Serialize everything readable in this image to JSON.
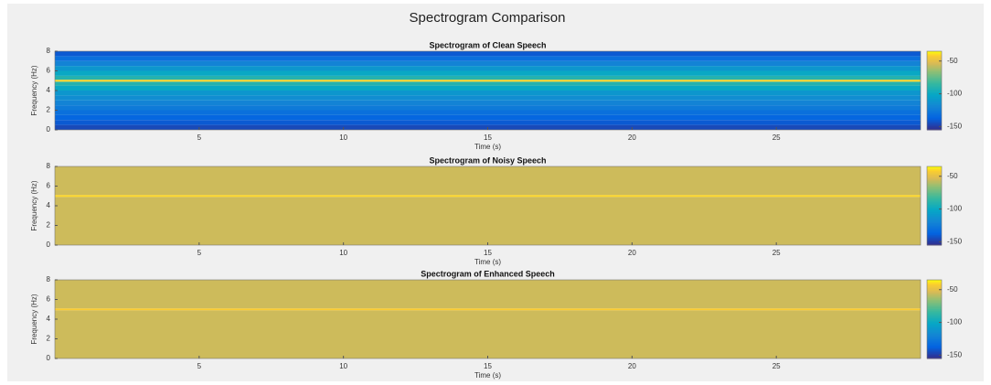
{
  "title": "Spectrogram Comparison",
  "chart_data": [
    {
      "type": "spectrogram",
      "title": "Spectrogram of Clean Speech",
      "xlabel": "Time (s)",
      "ylabel": "Frequency (Hz)",
      "xlim": [
        0,
        30
      ],
      "xticks": [
        5,
        10,
        15,
        20,
        25
      ],
      "ylim": [
        0,
        8
      ],
      "yticks": [
        0,
        2,
        4,
        6,
        8
      ],
      "freq_bins": [
        0,
        0.5,
        1,
        1.5,
        2,
        2.5,
        3,
        3.5,
        4,
        4.5,
        4.9,
        5.1,
        5.5,
        6,
        6.5,
        7,
        7.5,
        8
      ],
      "values": [
        -145,
        -140,
        -135,
        -130,
        -125,
        -120,
        -115,
        -110,
        -100,
        -90,
        -40,
        -90,
        -100,
        -110,
        -120,
        -130,
        -140
      ],
      "clim": [
        -155,
        -35
      ],
      "cticks": [
        -50,
        -100,
        -150
      ]
    },
    {
      "type": "spectrogram",
      "title": "Spectrogram of Noisy Speech",
      "xlabel": "Time (s)",
      "ylabel": "Frequency (Hz)",
      "xlim": [
        0,
        30
      ],
      "xticks": [
        5,
        10,
        15,
        20,
        25
      ],
      "ylim": [
        0,
        8
      ],
      "yticks": [
        0,
        2,
        4,
        6,
        8
      ],
      "freq_bins": [
        0,
        4.9,
        5.1,
        8
      ],
      "values": [
        -55,
        -40,
        -55
      ],
      "clim": [
        -155,
        -35
      ],
      "cticks": [
        -50,
        -100,
        -150
      ]
    },
    {
      "type": "spectrogram",
      "title": "Spectrogram of Enhanced Speech",
      "xlabel": "Time (s)",
      "ylabel": "Frequency (Hz)",
      "xlim": [
        0,
        30
      ],
      "xticks": [
        5,
        10,
        15,
        20,
        25
      ],
      "ylim": [
        0,
        8
      ],
      "yticks": [
        0,
        2,
        4,
        6,
        8
      ],
      "freq_bins": [
        0,
        4.9,
        5.1,
        8
      ],
      "values": [
        -55,
        -42,
        -55
      ],
      "clim": [
        -155,
        -35
      ],
      "cticks": [
        -50,
        -100,
        -150
      ]
    }
  ]
}
